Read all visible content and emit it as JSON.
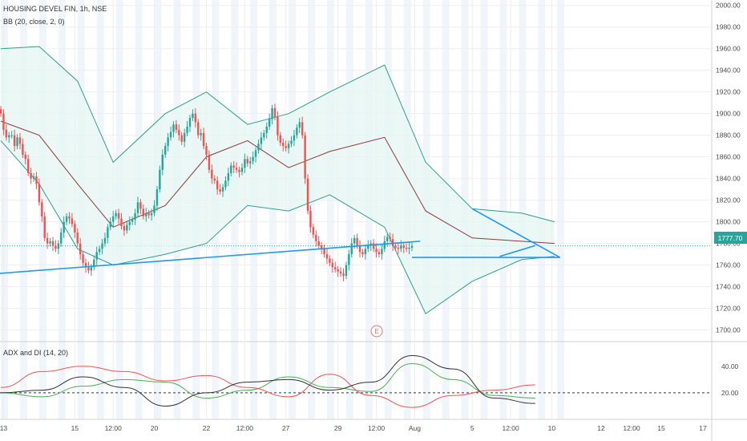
{
  "header": {
    "symbol_line": "HOUSING DEVEL FIN, 1h, NSE",
    "indicator_line": "BB (20, close, 2, 0)",
    "sub_indicator_line": "ADX and DI (14, 20)"
  },
  "event_marker": "E",
  "colors": {
    "up": "#26a69a",
    "down": "#ef5350",
    "bb_band": "#2e9e8a",
    "bb_fill": "#e6f5f3",
    "bb_basis": "#8b3a3a",
    "trendline": "#2196f3",
    "price_tag": "#26a69a",
    "adx": "#333333",
    "di_plus": "#4caf50",
    "di_minus": "#ef5350",
    "session_band": "#dde9f7"
  },
  "chart_data": [
    {
      "type": "candlestick",
      "title": "HOUSING DEVEL FIN, 1h, NSE",
      "ylim": [
        1690,
        2005
      ],
      "y_ticks": [
        "2000.00",
        "1980.00",
        "1960.00",
        "1940.00",
        "1920.00",
        "1900.00",
        "1880.00",
        "1860.00",
        "1840.00",
        "1820.00",
        "1800.00",
        "1780.00",
        "1760.00",
        "1740.00",
        "1720.00",
        "1700.00"
      ],
      "current_price": "1777.70",
      "x_ticks": [
        {
          "label": "13",
          "bar": 1
        },
        {
          "label": "15",
          "bar": 27
        },
        {
          "label": "12:00",
          "bar": 41
        },
        {
          "label": "20",
          "bar": 56
        },
        {
          "label": "22",
          "bar": 75
        },
        {
          "label": "12:00",
          "bar": 89
        },
        {
          "label": "27",
          "bar": 104
        },
        {
          "label": "29",
          "bar": 123
        },
        {
          "label": "12:00",
          "bar": 137
        },
        {
          "label": "Aug",
          "bar": 151
        },
        {
          "label": "5",
          "bar": 172
        },
        {
          "label": "12:00",
          "bar": 186
        },
        {
          "label": "10",
          "bar": 201
        }
      ],
      "x_ticks_future": [
        {
          "label": "12",
          "x": 750
        },
        {
          "label": "12:00",
          "x": 788
        },
        {
          "label": "15",
          "x": 825
        },
        {
          "label": "17",
          "x": 877
        }
      ],
      "closes": [
        1900,
        1885,
        1878,
        1880,
        1880,
        1870,
        1878,
        1872,
        1862,
        1858,
        1845,
        1840,
        1842,
        1835,
        1818,
        1805,
        1785,
        1780,
        1782,
        1778,
        1775,
        1780,
        1790,
        1800,
        1805,
        1803,
        1798,
        1790,
        1780,
        1770,
        1762,
        1758,
        1755,
        1758,
        1765,
        1772,
        1775,
        1780,
        1785,
        1795,
        1800,
        1805,
        1808,
        1803,
        1796,
        1792,
        1797,
        1800,
        1802,
        1808,
        1818,
        1812,
        1805,
        1808,
        1806,
        1808,
        1815,
        1830,
        1848,
        1862,
        1870,
        1878,
        1883,
        1890,
        1885,
        1880,
        1874,
        1882,
        1888,
        1896,
        1900,
        1892,
        1880,
        1882,
        1870,
        1862,
        1848,
        1840,
        1838,
        1830,
        1828,
        1832,
        1838,
        1845,
        1852,
        1850,
        1848,
        1846,
        1850,
        1858,
        1854,
        1856,
        1860,
        1866,
        1872,
        1878,
        1882,
        1888,
        1895,
        1905,
        1897,
        1880,
        1873,
        1870,
        1868,
        1872,
        1875,
        1880,
        1887,
        1892,
        1880,
        1840,
        1810,
        1795,
        1788,
        1782,
        1778,
        1775,
        1770,
        1766,
        1762,
        1758,
        1756,
        1754,
        1752,
        1750,
        1760,
        1770,
        1780,
        1785,
        1778,
        1772,
        1770,
        1775,
        1778,
        1780,
        1775,
        1772,
        1770,
        1775,
        1782,
        1786,
        1784,
        1778,
        1776,
        1775,
        1778,
        1776,
        1775,
        1776,
        1777.7
      ],
      "bb": {
        "bar_x": [
          0,
          14,
          28,
          41,
          60,
          75,
          90,
          105,
          120,
          140,
          155,
          172,
          190,
          202
        ],
        "upper": [
          1960,
          1962,
          1930,
          1855,
          1900,
          1920,
          1890,
          1900,
          1920,
          1945,
          1855,
          1812,
          1808,
          1800
        ],
        "basis": [
          1893,
          1880,
          1835,
          1795,
          1815,
          1860,
          1875,
          1850,
          1865,
          1878,
          1810,
          1785,
          1782,
          1780
        ],
        "lower": [
          1875,
          1835,
          1775,
          1760,
          1770,
          1780,
          1815,
          1810,
          1825,
          1795,
          1715,
          1745,
          1765,
          1768
        ]
      },
      "trendlines": [
        {
          "from": [
            -2,
            1752
          ],
          "to": [
            153,
            1782
          ]
        },
        {
          "from": [
            150,
            1767
          ],
          "to": [
            204,
            1767
          ]
        },
        {
          "from": [
            172,
            1812
          ],
          "to": [
            204,
            1767
          ]
        },
        {
          "from": [
            182,
            1768
          ],
          "to": [
            195,
            1778
          ]
        }
      ]
    },
    {
      "type": "line",
      "title": "ADX and DI (14, 20)",
      "ylim": [
        0,
        58
      ],
      "y_ticks": [
        "40.00",
        "20.00"
      ],
      "key_level": 20,
      "x": [
        0,
        15,
        30,
        45,
        60,
        75,
        90,
        105,
        120,
        135,
        150,
        165,
        180,
        195
      ],
      "series": [
        {
          "values": [
            20,
            17,
            25,
            30,
            28,
            16,
            22,
            32,
            24,
            21,
            42,
            30,
            18,
            16
          ]
        },
        {
          "values": [
            24,
            36,
            40,
            36,
            29,
            33,
            24,
            17,
            34,
            18,
            9,
            18,
            22,
            26
          ]
        },
        {
          "values": [
            20,
            22,
            32,
            24,
            10,
            20,
            28,
            30,
            22,
            28,
            48,
            38,
            16,
            12
          ]
        }
      ]
    }
  ]
}
